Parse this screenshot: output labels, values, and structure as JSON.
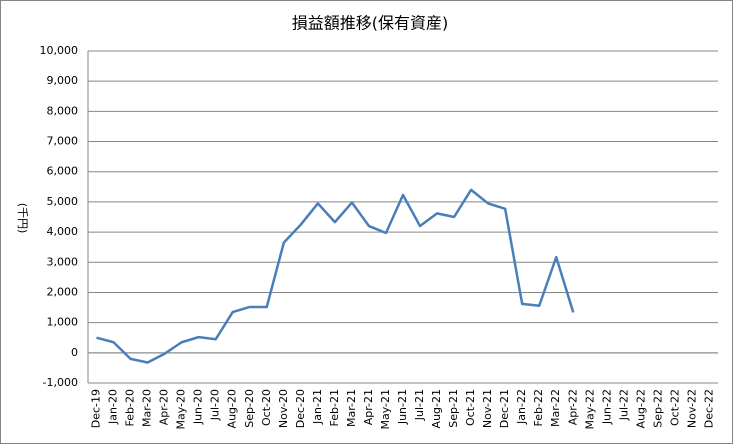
{
  "chart_data": {
    "type": "line",
    "title": "損益額推移(保有資産)",
    "y_label": "(千円)",
    "categories": [
      "Dec-19",
      "Jan-20",
      "Feb-20",
      "Mar-20",
      "Apr-20",
      "May-20",
      "Jun-20",
      "Jul-20",
      "Aug-20",
      "Sep-20",
      "Oct-20",
      "Nov-20",
      "Dec-20",
      "Jan-21",
      "Feb-21",
      "Mar-21",
      "Apr-21",
      "May-21",
      "Jun-21",
      "Jul-21",
      "Aug-21",
      "Sep-21",
      "Oct-21",
      "Nov-21",
      "Dec-21",
      "Jan-22",
      "Feb-22",
      "Mar-22",
      "Apr-22",
      "May-22",
      "Jun-22",
      "Jul-22",
      "Aug-22",
      "Sep-22",
      "Oct-22",
      "Nov-22",
      "Dec-22"
    ],
    "values": [
      500,
      350,
      -200,
      -320,
      -30,
      350,
      520,
      450,
      1350,
      1520,
      1520,
      3650,
      4250,
      4950,
      4330,
      4980,
      4200,
      3970,
      5230,
      4200,
      4620,
      4500,
      5400,
      4950,
      4770,
      1620,
      1560,
      3170,
      1340,
      null,
      null,
      null,
      null,
      null,
      null,
      null,
      null
    ],
    "color": "#4a7ebb",
    "ylim": [
      -1000,
      10000
    ],
    "yticks": [
      {
        "value": -1000,
        "label": "-1,000"
      },
      0,
      {
        "value": 1000,
        "label": "1,000"
      },
      {
        "value": 2000,
        "label": "2,000"
      },
      {
        "value": 3000,
        "label": "3,000"
      },
      {
        "value": 4000,
        "label": "4,000"
      },
      {
        "value": 5000,
        "label": "5,000"
      },
      {
        "value": 6000,
        "label": "6,000"
      },
      {
        "value": 7000,
        "label": "7,000"
      },
      {
        "value": 8000,
        "label": "8,000"
      },
      {
        "value": 9000,
        "label": "9,000"
      },
      {
        "value": 10000,
        "label": "10,000"
      }
    ],
    "grid": true
  }
}
